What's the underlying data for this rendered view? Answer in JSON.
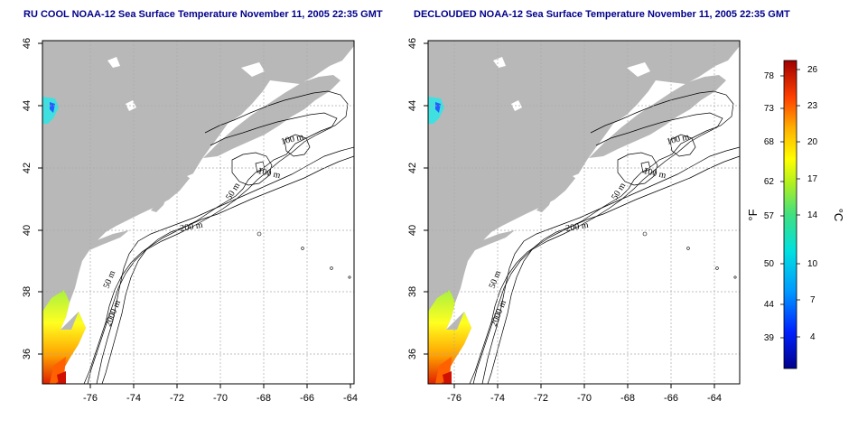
{
  "maps": [
    {
      "id": "rucool",
      "title": "RU COOL NOAA-12 Sea Surface Temperature November 11, 2005 22:35 GMT",
      "x_ticks": [
        "-76",
        "-74",
        "-72",
        "-70",
        "-68",
        "-66",
        "-64"
      ],
      "y_ticks": [
        "46",
        "44",
        "42",
        "40",
        "38",
        "36"
      ],
      "contour_labels": [
        "100 m",
        "100 m",
        "50 m",
        "200 m",
        "50 m",
        "2000 m"
      ]
    },
    {
      "id": "declouded",
      "title": "DECLOUDED NOAA-12 Sea Surface Temperature November 11, 2005 22:35 GMT",
      "x_ticks": [
        "-76",
        "-74",
        "-72",
        "-70",
        "-68",
        "-66",
        "-64"
      ],
      "y_ticks": [
        "46",
        "44",
        "42",
        "40",
        "38",
        "36"
      ],
      "contour_labels": [
        "100 m",
        "100 m",
        "50 m",
        "200 m",
        "50 m",
        "2000 m"
      ]
    }
  ],
  "colorbar": {
    "fahrenheit_ticks": [
      "78",
      "73",
      "68",
      "62",
      "57",
      "50",
      "44",
      "39"
    ],
    "celsius_ticks": [
      "26",
      "23",
      "20",
      "17",
      "14",
      "10",
      "7",
      "4"
    ],
    "fahrenheit_label": "°F",
    "celsius_label": "°C"
  },
  "colors": {
    "land": "#b8b8b8",
    "title": "#00008b",
    "grid": "#aaaaaa"
  }
}
